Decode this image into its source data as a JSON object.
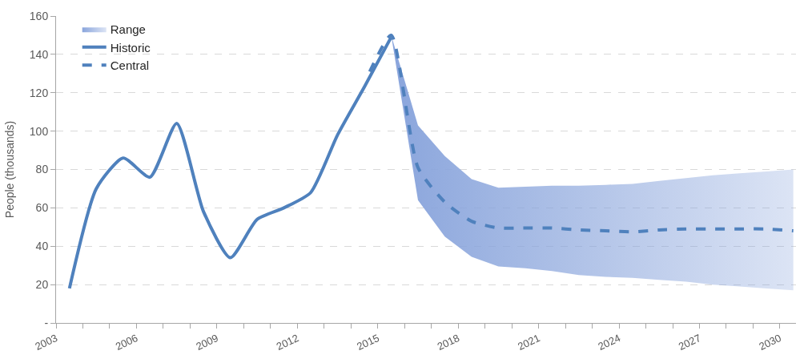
{
  "chart_data": {
    "type": "line",
    "ylabel": "People (thousands)",
    "xlim": [
      2003,
      2030.6
    ],
    "ylim": [
      0,
      160
    ],
    "xticks": [
      2003,
      {
        "value": 2004,
        "label": null
      },
      {
        "value": 2005,
        "label": null
      },
      2006,
      {
        "value": 2007,
        "label": null
      },
      {
        "value": 2008,
        "label": null
      },
      2009,
      {
        "value": 2010,
        "label": null
      },
      {
        "value": 2011,
        "label": null
      },
      2012,
      {
        "value": 2013,
        "label": null
      },
      {
        "value": 2014,
        "label": null
      },
      2015,
      {
        "value": 2016,
        "label": null
      },
      {
        "value": 2017,
        "label": null
      },
      2018,
      {
        "value": 2019,
        "label": null
      },
      {
        "value": 2020,
        "label": null
      },
      2021,
      {
        "value": 2022,
        "label": null
      },
      {
        "value": 2023,
        "label": null
      },
      2024,
      {
        "value": 2025,
        "label": null
      },
      {
        "value": 2026,
        "label": null
      },
      2027,
      {
        "value": 2028,
        "label": null
      },
      {
        "value": 2029,
        "label": null
      },
      2030
    ],
    "yticks": [
      {
        "value": 0,
        "label": "-"
      },
      20,
      40,
      60,
      80,
      100,
      120,
      140,
      160
    ],
    "grid": "y",
    "legend": "top left",
    "series": [
      {
        "name": "Range",
        "type": "area",
        "color": "#8aa5dc"
      },
      {
        "name": "Historic",
        "line_style": "solid",
        "color": "#4f81bd",
        "x": [
          2003.5,
          2004.5,
          2005.5,
          2006.5,
          2007.5,
          2008.5,
          2009.5,
          2010.5,
          2011.5,
          2012.5,
          2013.5,
          2014.5,
          2015.5
        ],
        "values": [
          18,
          70,
          86,
          76,
          104,
          58,
          34,
          54,
          60,
          68,
          98,
          123,
          149
        ]
      },
      {
        "name": "Central",
        "line_style": "dashed",
        "color": "#4f81bd",
        "x": [
          2014.7,
          2015.5,
          2016.5,
          2017.5,
          2018.5,
          2019.5,
          2020.5,
          2021.5,
          2022.5,
          2023.5,
          2024.5,
          2025.5,
          2026.5,
          2027.5,
          2028.5,
          2029.5,
          2030.5
        ],
        "values": [
          131,
          150,
          81,
          63,
          53,
          49.5,
          49.5,
          49.5,
          48.5,
          48,
          47.5,
          48.5,
          49,
          49,
          49,
          49,
          48
        ],
        "lower": [
          null,
          150,
          64,
          45,
          34.5,
          29.5,
          28.5,
          27,
          25,
          24,
          23.5,
          22.5,
          21.5,
          20,
          19,
          18,
          17
        ],
        "upper": [
          null,
          150,
          103,
          87,
          75,
          70.5,
          71,
          71.5,
          71.5,
          72,
          72.5,
          74,
          75.5,
          77,
          78,
          79,
          80
        ]
      }
    ]
  }
}
